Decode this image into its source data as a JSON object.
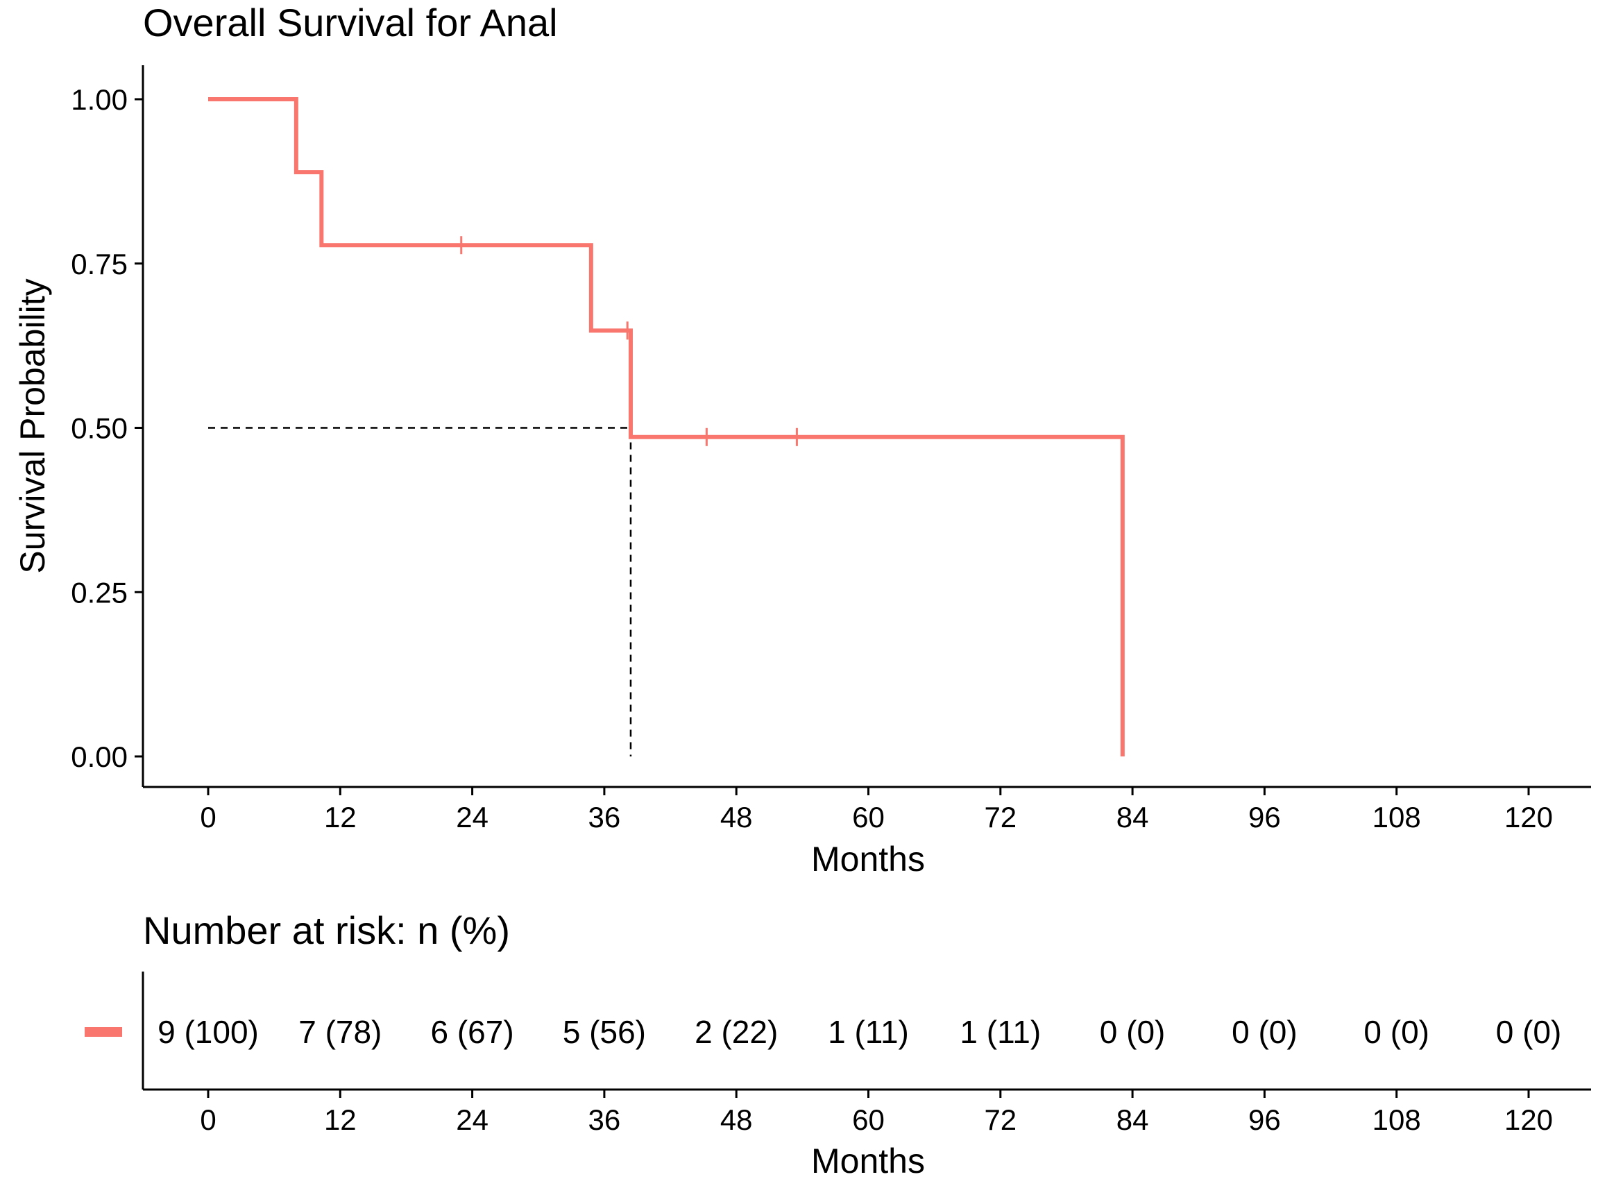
{
  "chart_data": {
    "type": "line",
    "subtype": "kaplan-meier",
    "title": "Overall Survival for Anal",
    "xlabel": "Months",
    "ylabel": "Survival Probability",
    "xlim": [
      0,
      120
    ],
    "ylim": [
      0,
      1
    ],
    "x_ticks": [
      0,
      12,
      24,
      36,
      48,
      60,
      72,
      84,
      96,
      108,
      120
    ],
    "y_ticks": [
      0,
      0.25,
      0.5,
      0.75,
      1
    ],
    "y_tick_labels": [
      "0.00",
      "0.25",
      "0.50",
      "0.75",
      "1.00"
    ],
    "series": [
      {
        "name": "Anal",
        "color": "#f8766d",
        "steps": [
          {
            "x": 0,
            "y": 1.0
          },
          {
            "x": 8,
            "y": 0.889
          },
          {
            "x": 10.3,
            "y": 0.778
          },
          {
            "x": 34.8,
            "y": 0.648
          },
          {
            "x": 38.4,
            "y": 0.486
          },
          {
            "x": 83.1,
            "y": 0.0
          }
        ],
        "censor_marks": [
          {
            "x": 23,
            "y": 0.778
          },
          {
            "x": 38.1,
            "y": 0.648
          },
          {
            "x": 45.3,
            "y": 0.486
          },
          {
            "x": 53.5,
            "y": 0.486
          }
        ]
      }
    ],
    "median_survival": {
      "x": 38.4,
      "y": 0.5
    },
    "risk_table": {
      "title": "Number at risk: n (%)",
      "xlabel": "Months",
      "x_ticks": [
        0,
        12,
        24,
        36,
        48,
        60,
        72,
        84,
        96,
        108,
        120
      ],
      "values": [
        "9 (100)",
        "7 (78)",
        "6 (67)",
        "5 (56)",
        "2 (22)",
        "1 (11)",
        "1 (11)",
        "0 (0)",
        "0 (0)",
        "0 (0)",
        "0 (0)"
      ]
    }
  }
}
